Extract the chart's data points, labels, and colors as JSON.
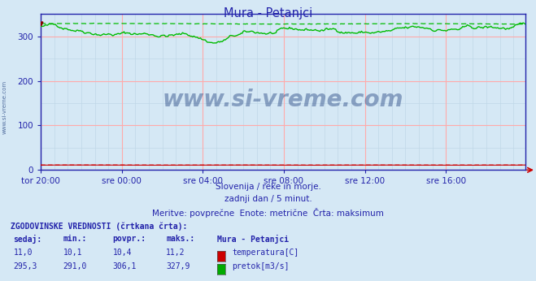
{
  "title": "Mura - Petanjci",
  "bg_color": "#d5e8f5",
  "y_min": 0,
  "y_max": 350,
  "y_ticks": [
    0,
    100,
    200,
    300
  ],
  "x_labels": [
    "tor 20:00",
    "sre 00:00",
    "sre 04:00",
    "sre 08:00",
    "sre 12:00",
    "sre 16:00"
  ],
  "x_tick_positions": [
    0,
    72,
    144,
    216,
    288,
    360
  ],
  "total_points": 432,
  "temp_color": "#cc0000",
  "flow_color": "#00bb00",
  "axis_color": "#2222aa",
  "grid_color_major": "#ffaaaa",
  "grid_color_minor": "#c0d8e8",
  "subtitle1": "Slovenija / reke in morje.",
  "subtitle2": "zadnji dan / 5 minut.",
  "subtitle3": "Meritve: povprečne  Enote: metrične  Črta: maksimum",
  "legend_title": "ZGODOVINSKE VREDNOSTI (črtkana črta):",
  "col_headers": [
    "sedaj:",
    "min.:",
    "povpr.:",
    "maks.:"
  ],
  "row1_vals": [
    "11,0",
    "10,1",
    "10,4",
    "11,2"
  ],
  "row1_label": "temperatura[C]",
  "row1_color": "#cc0000",
  "row2_vals": [
    "295,3",
    "291,0",
    "306,1",
    "327,9"
  ],
  "row2_label": "pretok[m3/s]",
  "row2_color": "#00aa00",
  "station_label": "Mura - Petanjci",
  "watermark": "www.si-vreme.com",
  "watermark_color": "#1a3a7a",
  "sidebar_text": "www.si-vreme.com"
}
